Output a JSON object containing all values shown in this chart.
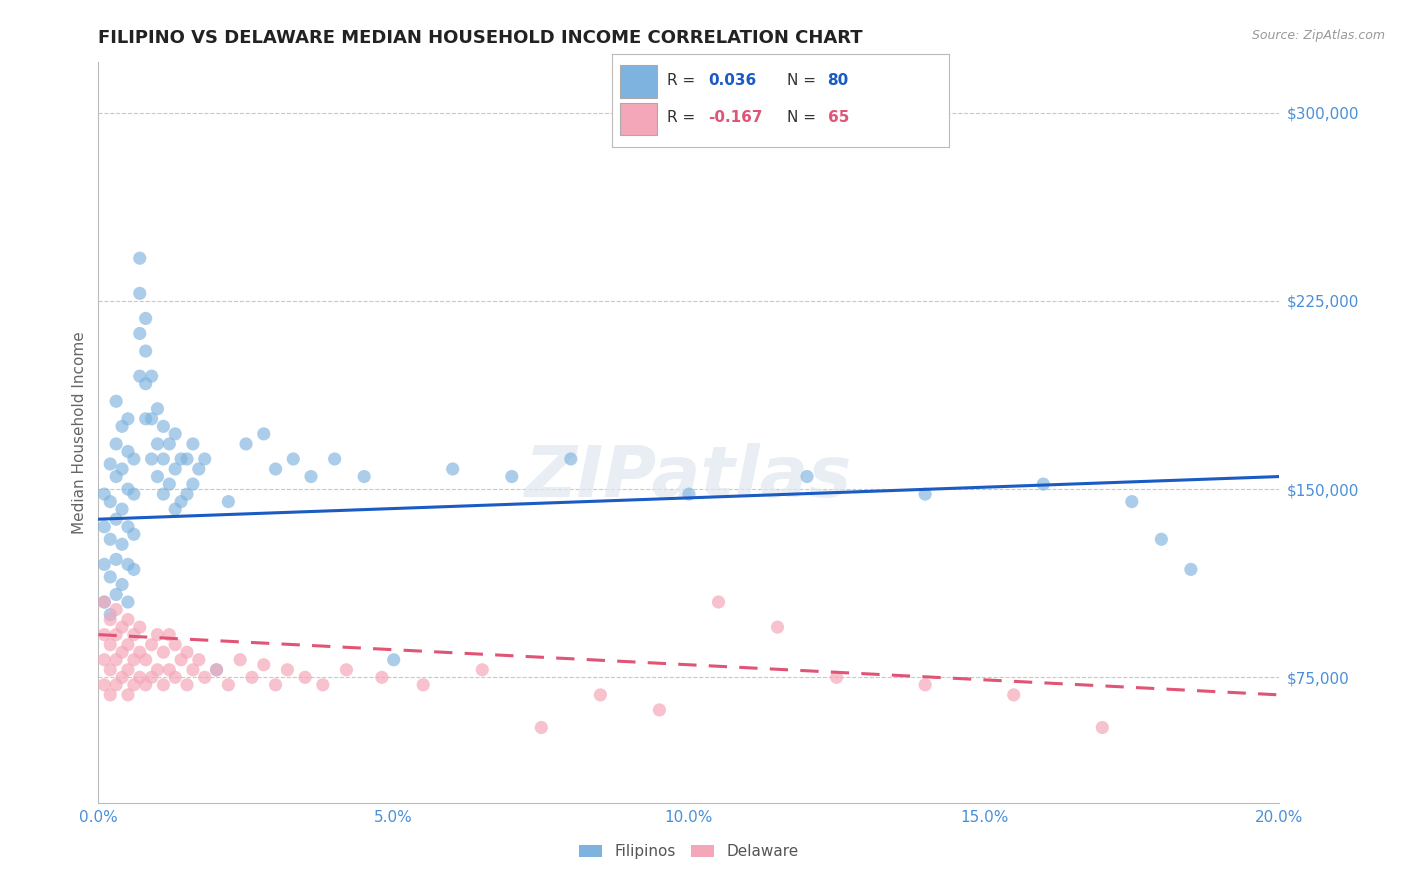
{
  "title": "FILIPINO VS DELAWARE MEDIAN HOUSEHOLD INCOME CORRELATION CHART",
  "source": "Source: ZipAtlas.com",
  "ylabel": "Median Household Income",
  "x_min": 0.0,
  "x_max": 0.2,
  "y_min": 25000,
  "y_max": 320000,
  "y_ticks": [
    75000,
    150000,
    225000,
    300000
  ],
  "x_ticks": [
    0.0,
    0.05,
    0.1,
    0.15,
    0.2
  ],
  "x_tick_labels": [
    "0.0%",
    "5.0%",
    "10.0%",
    "15.0%",
    "20.0%"
  ],
  "watermark": "ZIPatlas",
  "blue_color": "#7eb3e0",
  "pink_color": "#f4a7b9",
  "blue_line_color": "#1a5bc4",
  "pink_line_color": "#e05575",
  "title_color": "#222222",
  "tick_label_color": "#4a90d9",
  "R_blue": 0.036,
  "N_blue": 80,
  "R_pink": -0.167,
  "N_pink": 65,
  "legend_label_blue": "Filipinos",
  "legend_label_pink": "Delaware",
  "blue_line_y0": 138000,
  "blue_line_y1": 155000,
  "pink_line_y0": 92000,
  "pink_line_y1": 68000,
  "blue_scatter_x": [
    0.001,
    0.001,
    0.001,
    0.001,
    0.002,
    0.002,
    0.002,
    0.002,
    0.002,
    0.003,
    0.003,
    0.003,
    0.003,
    0.003,
    0.003,
    0.004,
    0.004,
    0.004,
    0.004,
    0.004,
    0.005,
    0.005,
    0.005,
    0.005,
    0.005,
    0.005,
    0.006,
    0.006,
    0.006,
    0.006,
    0.007,
    0.007,
    0.007,
    0.007,
    0.008,
    0.008,
    0.008,
    0.008,
    0.009,
    0.009,
    0.009,
    0.01,
    0.01,
    0.01,
    0.011,
    0.011,
    0.011,
    0.012,
    0.012,
    0.013,
    0.013,
    0.013,
    0.014,
    0.014,
    0.015,
    0.015,
    0.016,
    0.016,
    0.017,
    0.018,
    0.02,
    0.022,
    0.025,
    0.028,
    0.03,
    0.033,
    0.036,
    0.04,
    0.045,
    0.05,
    0.06,
    0.07,
    0.08,
    0.1,
    0.12,
    0.14,
    0.16,
    0.175,
    0.18,
    0.185
  ],
  "blue_scatter_y": [
    105000,
    120000,
    135000,
    148000,
    100000,
    115000,
    130000,
    145000,
    160000,
    108000,
    122000,
    138000,
    155000,
    168000,
    185000,
    112000,
    128000,
    142000,
    158000,
    175000,
    105000,
    120000,
    135000,
    150000,
    165000,
    178000,
    118000,
    132000,
    148000,
    162000,
    195000,
    212000,
    228000,
    242000,
    178000,
    192000,
    205000,
    218000,
    162000,
    178000,
    195000,
    155000,
    168000,
    182000,
    148000,
    162000,
    175000,
    152000,
    168000,
    142000,
    158000,
    172000,
    145000,
    162000,
    148000,
    162000,
    152000,
    168000,
    158000,
    162000,
    78000,
    145000,
    168000,
    172000,
    158000,
    162000,
    155000,
    162000,
    155000,
    82000,
    158000,
    155000,
    162000,
    148000,
    155000,
    148000,
    152000,
    145000,
    130000,
    118000
  ],
  "pink_scatter_x": [
    0.001,
    0.001,
    0.001,
    0.001,
    0.002,
    0.002,
    0.002,
    0.002,
    0.003,
    0.003,
    0.003,
    0.003,
    0.004,
    0.004,
    0.004,
    0.005,
    0.005,
    0.005,
    0.005,
    0.006,
    0.006,
    0.006,
    0.007,
    0.007,
    0.007,
    0.008,
    0.008,
    0.009,
    0.009,
    0.01,
    0.01,
    0.011,
    0.011,
    0.012,
    0.012,
    0.013,
    0.013,
    0.014,
    0.015,
    0.015,
    0.016,
    0.017,
    0.018,
    0.02,
    0.022,
    0.024,
    0.026,
    0.028,
    0.03,
    0.032,
    0.035,
    0.038,
    0.042,
    0.048,
    0.055,
    0.065,
    0.075,
    0.085,
    0.095,
    0.105,
    0.115,
    0.125,
    0.14,
    0.155,
    0.17
  ],
  "pink_scatter_y": [
    72000,
    82000,
    92000,
    105000,
    68000,
    78000,
    88000,
    98000,
    72000,
    82000,
    92000,
    102000,
    75000,
    85000,
    95000,
    68000,
    78000,
    88000,
    98000,
    72000,
    82000,
    92000,
    75000,
    85000,
    95000,
    72000,
    82000,
    75000,
    88000,
    78000,
    92000,
    72000,
    85000,
    78000,
    92000,
    75000,
    88000,
    82000,
    72000,
    85000,
    78000,
    82000,
    75000,
    78000,
    72000,
    82000,
    75000,
    80000,
    72000,
    78000,
    75000,
    72000,
    78000,
    75000,
    72000,
    78000,
    55000,
    68000,
    62000,
    105000,
    95000,
    75000,
    72000,
    68000,
    55000
  ]
}
